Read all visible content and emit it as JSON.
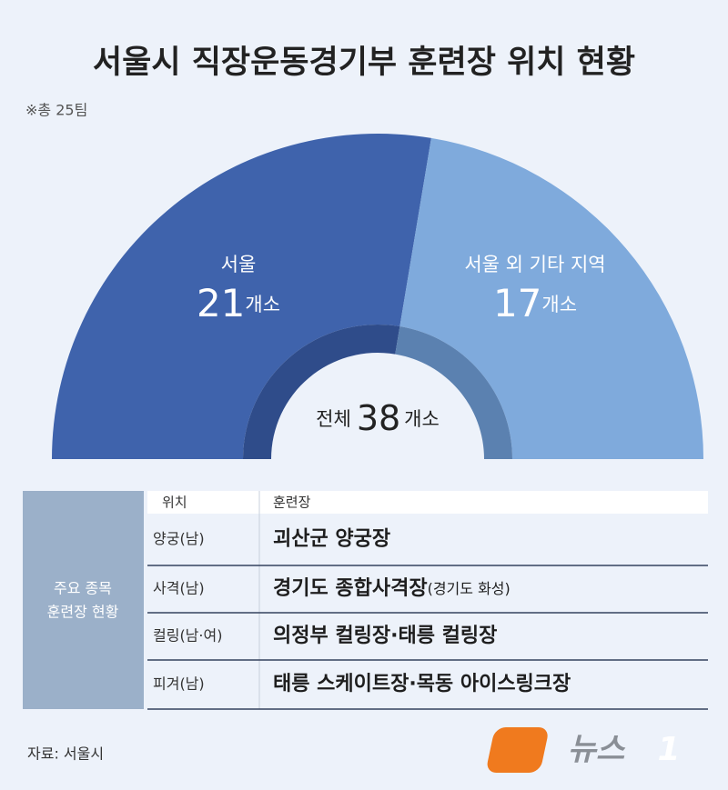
{
  "chart_data": {
    "type": "half-donut",
    "title": "서울시 직장운동경기부 훈련장 위치 현황",
    "subtitle": "※총 25팀",
    "categories": [
      "서울",
      "서울 외 기타 지역"
    ],
    "values": [
      21,
      17
    ],
    "colors": [
      "#3f63ac",
      "#7faadc"
    ],
    "ring_colors": [
      "#2f4c8a",
      "#5b81b0"
    ],
    "unit": "개소",
    "total_label": "전체",
    "total": 38
  },
  "table": {
    "side_label": [
      "주요 종목",
      "훈련장 현황"
    ],
    "header": [
      "위치",
      "훈련장"
    ],
    "rows": [
      {
        "event": "양궁(남)",
        "venue": "괴산군 양궁장"
      },
      {
        "event": "사격(남)",
        "venue": "경기도 종합사격장",
        "note": "(경기도 화성)"
      },
      {
        "event": "컬링(남·여)",
        "venue": "의정부 컬링장·태릉 컬링장"
      },
      {
        "event": "피겨(남)",
        "venue": "태릉 스케이트장·목동 아이스링크장"
      }
    ]
  },
  "footer": {
    "source": "자료: 서울시",
    "logo": {
      "name": "뉴스",
      "mark": "1"
    }
  }
}
